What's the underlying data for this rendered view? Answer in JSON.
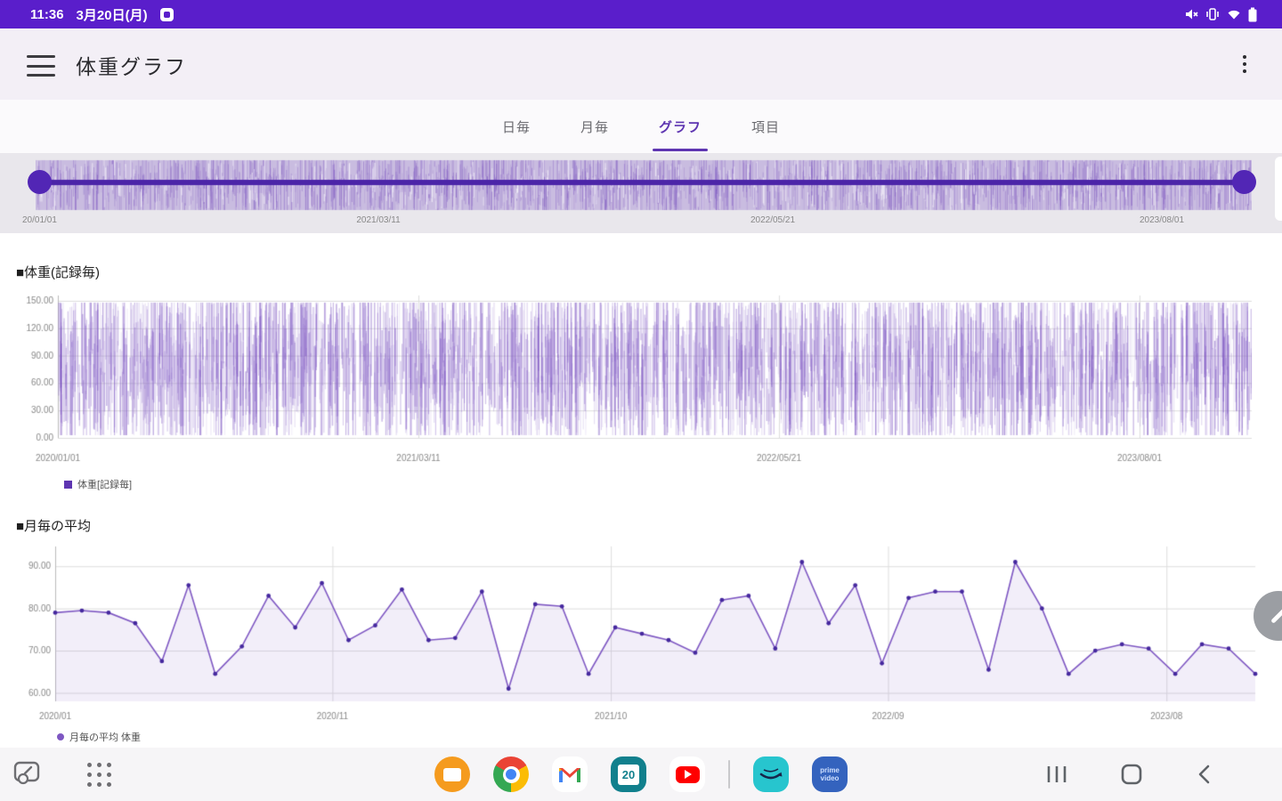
{
  "status_bar": {
    "time": "11:36",
    "date": "3月20日(月)",
    "left_icon": "app-notification",
    "right_icons": [
      "volume-mute",
      "vibrate",
      "wifi",
      "battery"
    ]
  },
  "app_bar": {
    "title": "体重グラフ"
  },
  "tabs": [
    {
      "label": "日毎",
      "selected": false
    },
    {
      "label": "月毎",
      "selected": false
    },
    {
      "label": "グラフ",
      "selected": true
    },
    {
      "label": "項目",
      "selected": false
    }
  ],
  "range_slider": {
    "labels": [
      "20/01/01",
      "2021/03/11",
      "2022/05/21",
      "2023/08/01"
    ]
  },
  "chart_data": [
    {
      "type": "line",
      "title": "■体重(記録毎)",
      "legend": "体重[記録毎]",
      "ylabel": "",
      "xlabel": "",
      "ylim": [
        0,
        150
      ],
      "y_ticks": [
        "150.00",
        "120.00",
        "90.00",
        "60.00",
        "30.00",
        "0.00"
      ],
      "x_ticks": [
        "2020/01/01",
        "2021/03/11",
        "2022/05/21",
        "2023/08/01"
      ],
      "series_note": "thousands of per-record weight values rendered as dense vertical strokes, values approx 5-148",
      "approx_value_range": [
        5,
        148
      ],
      "approx_point_count": 2600
    },
    {
      "type": "line",
      "title": "■月毎の平均",
      "legend": "月毎の平均 体重",
      "ylabel": "",
      "xlabel": "",
      "ylim": [
        60,
        90
      ],
      "y_ticks": [
        "90.00",
        "80.00",
        "70.00",
        "60.00"
      ],
      "x_ticks": [
        "2020/01",
        "2020/11",
        "2021/10",
        "2022/09",
        "2023/08"
      ],
      "x_start": "2020/01",
      "interval": "monthly",
      "values": [
        79,
        79.5,
        79,
        76.5,
        67.5,
        85.5,
        64.5,
        71,
        83,
        75.5,
        86,
        72.5,
        76,
        84.5,
        72.5,
        73,
        84,
        61,
        81,
        80.5,
        64.5,
        75.5,
        74,
        72.5,
        69.5,
        82,
        83,
        70.5,
        91,
        76.5,
        85.5,
        67,
        82.5,
        84,
        84,
        65.5,
        91,
        80,
        64.5,
        70,
        71.5,
        70.5,
        64.5,
        71.5,
        70.5,
        64.5
      ]
    }
  ],
  "fab": {
    "icon": "pencil"
  },
  "dock": {
    "left_icons": [
      "screen-capture",
      "apps-grid"
    ],
    "apps": [
      "samsung-internet",
      "chrome",
      "gmail",
      "calendar",
      "youtube",
      "amazon-music",
      "prime-video"
    ],
    "calendar_badge": "20",
    "prime_video_label_1": "prime",
    "prime_video_label_2": "video",
    "nav": [
      "recents",
      "home",
      "back"
    ]
  },
  "colors": {
    "status-bar-bg": "#5A1ECB",
    "accent": "#5E35B1",
    "line": "#7E57C2",
    "point": "#45289E",
    "noise": "#9575CD",
    "fill": "rgba(126,87,194,0.10)",
    "track": "#4B24A8",
    "handle": "#5226B5",
    "grid": "#DDDDDD",
    "axis": "#BBBBBB",
    "tick-label": "#888888",
    "title-text": "#1F1F1F",
    "tab-inactive": "#6B6B70",
    "strip-bg": "#E9E7EC",
    "dock-bg": "#F6F5F7",
    "appbar-bg": "#F3EFF6",
    "tabbar-bg": "#FBFAFC"
  }
}
